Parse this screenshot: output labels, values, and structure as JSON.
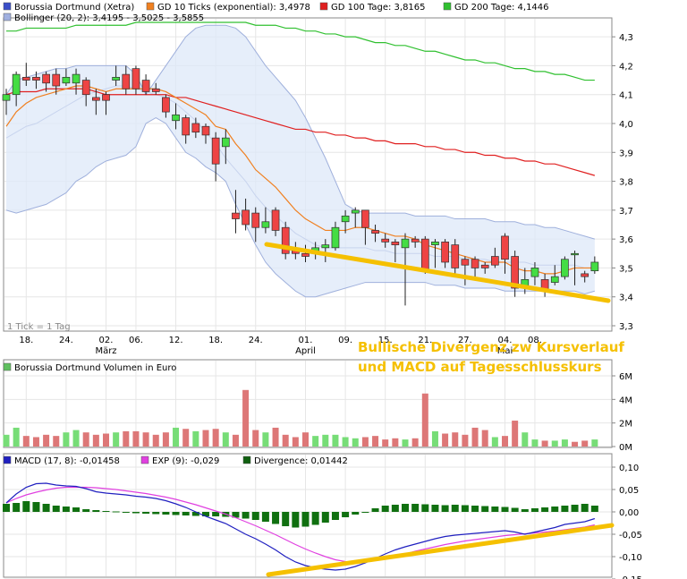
{
  "legend_top": [
    {
      "label": "Borussia Dortmund (Xetra)",
      "color": "#3a4ec8"
    },
    {
      "label": "GD 10 Ticks (exponential): 3,4978",
      "color": "#f08020"
    },
    {
      "label": "GD 100 Tage: 3,8165",
      "color": "#e02020"
    },
    {
      "label": "GD 200 Tage: 4,1446",
      "color": "#30c030"
    },
    {
      "label": "Bollinger (20, 2): 3,4195 - 3,5025 - 3,5855",
      "color": "#a0b0e0"
    }
  ],
  "tick_note": "1 Tick = 1 Tag",
  "annotation_line1": "Bullische Divergenz zw Kursverlauf",
  "annotation_line2": "und MACD auf Tagesschlusskurs",
  "x_labels": [
    {
      "label": "18.",
      "i": 2
    },
    {
      "label": "24.",
      "i": 6
    },
    {
      "label": "02.",
      "i": 10
    },
    {
      "label": "06.",
      "i": 13
    },
    {
      "label": "12.",
      "i": 17
    },
    {
      "label": "18.",
      "i": 21
    },
    {
      "label": "24.",
      "i": 25
    },
    {
      "label": "01.",
      "i": 30
    },
    {
      "label": "09.",
      "i": 34
    },
    {
      "label": "15.",
      "i": 38
    },
    {
      "label": "21.",
      "i": 42
    },
    {
      "label": "27.",
      "i": 46
    },
    {
      "label": "04.",
      "i": 50
    },
    {
      "label": "08.",
      "i": 53
    }
  ],
  "x_month_labels": [
    {
      "label": "März",
      "i": 10
    },
    {
      "label": "April",
      "i": 30
    },
    {
      "label": "Mai",
      "i": 50
    }
  ],
  "volume_legend": {
    "label": "Borussia Dortmund Volumen in Euro",
    "color": "#60c060"
  },
  "macd_legend": [
    {
      "label": "MACD (17, 8): -0,01458",
      "color": "#2020c0"
    },
    {
      "label": "EXP (9): -0,029",
      "color": "#e040e0"
    },
    {
      "label": "Divergence: 0,01442",
      "color": "#106010"
    }
  ],
  "chart_data": [
    {
      "type": "candlestick",
      "title": "Borussia Dortmund (Xetra)",
      "ylim": [
        3.3,
        4.35
      ],
      "y_ticks": [
        {
          "v": 3.3,
          "label": "3,3"
        },
        {
          "v": 3.4,
          "label": "3,4"
        },
        {
          "v": 3.5,
          "label": "3,5"
        },
        {
          "v": 3.6,
          "label": "3,6"
        },
        {
          "v": 3.7,
          "label": "3,7"
        },
        {
          "v": 3.8,
          "label": "3,8"
        },
        {
          "v": 3.9,
          "label": "3,9"
        },
        {
          "v": 4.0,
          "label": "4,0"
        },
        {
          "v": 4.1,
          "label": "4,1"
        },
        {
          "v": 4.2,
          "label": "4,2"
        },
        {
          "v": 4.3,
          "label": "4,3"
        }
      ],
      "candles": [
        [
          4.08,
          4.1,
          4.12,
          4.03
        ],
        [
          4.1,
          4.17,
          4.18,
          4.06
        ],
        [
          4.16,
          4.15,
          4.21,
          4.13
        ],
        [
          4.16,
          4.15,
          4.18,
          4.12
        ],
        [
          4.17,
          4.14,
          4.18,
          4.11
        ],
        [
          4.17,
          4.13,
          4.19,
          4.1
        ],
        [
          4.14,
          4.16,
          4.19,
          4.13
        ],
        [
          4.14,
          4.17,
          4.19,
          4.1
        ],
        [
          4.15,
          4.1,
          4.16,
          4.06
        ],
        [
          4.09,
          4.08,
          4.12,
          4.03
        ],
        [
          4.1,
          4.08,
          4.11,
          4.03
        ],
        [
          4.15,
          4.16,
          4.2,
          4.13
        ],
        [
          4.17,
          4.12,
          4.2,
          4.1
        ],
        [
          4.19,
          4.12,
          4.2,
          4.1
        ],
        [
          4.15,
          4.11,
          4.17,
          4.1
        ],
        [
          4.12,
          4.11,
          4.14,
          4.1
        ],
        [
          4.09,
          4.04,
          4.1,
          4.02
        ],
        [
          4.01,
          4.03,
          4.07,
          3.98
        ],
        [
          4.02,
          3.96,
          4.03,
          3.93
        ],
        [
          4.0,
          3.97,
          4.02,
          3.95
        ],
        [
          3.99,
          3.96,
          4.0,
          3.93
        ],
        [
          3.95,
          3.86,
          3.97,
          3.8
        ],
        [
          3.92,
          3.95,
          3.98,
          3.86
        ],
        [
          3.69,
          3.67,
          3.77,
          3.62
        ],
        [
          3.7,
          3.65,
          3.74,
          3.63
        ],
        [
          3.69,
          3.64,
          3.71,
          3.59
        ],
        [
          3.64,
          3.66,
          3.71,
          3.62
        ],
        [
          3.7,
          3.63,
          3.71,
          3.61
        ],
        [
          3.64,
          3.55,
          3.66,
          3.53
        ],
        [
          3.56,
          3.55,
          3.59,
          3.53
        ],
        [
          3.55,
          3.54,
          3.58,
          3.52
        ],
        [
          3.55,
          3.57,
          3.59,
          3.53
        ],
        [
          3.57,
          3.58,
          3.6,
          3.52
        ],
        [
          3.57,
          3.64,
          3.66,
          3.56
        ],
        [
          3.66,
          3.68,
          3.7,
          3.62
        ],
        [
          3.69,
          3.7,
          3.71,
          3.64
        ],
        [
          3.7,
          3.64,
          3.7,
          3.58
        ],
        [
          3.63,
          3.62,
          3.65,
          3.59
        ],
        [
          3.6,
          3.59,
          3.62,
          3.57
        ],
        [
          3.59,
          3.58,
          3.6,
          3.52
        ],
        [
          3.57,
          3.6,
          3.62,
          3.37
        ],
        [
          3.6,
          3.59,
          3.61,
          3.57
        ],
        [
          3.6,
          3.49,
          3.61,
          3.48
        ],
        [
          3.58,
          3.59,
          3.6,
          3.5
        ],
        [
          3.59,
          3.52,
          3.6,
          3.5
        ],
        [
          3.58,
          3.5,
          3.6,
          3.47
        ],
        [
          3.53,
          3.51,
          3.54,
          3.44
        ],
        [
          3.53,
          3.5,
          3.54,
          3.47
        ],
        [
          3.51,
          3.5,
          3.52,
          3.48
        ],
        [
          3.54,
          3.51,
          3.57,
          3.5
        ],
        [
          3.61,
          3.53,
          3.62,
          3.48
        ],
        [
          3.54,
          3.43,
          3.56,
          3.4
        ],
        [
          3.43,
          3.46,
          3.5,
          3.41
        ],
        [
          3.47,
          3.5,
          3.52,
          3.44
        ],
        [
          3.46,
          3.42,
          3.48,
          3.4
        ],
        [
          3.45,
          3.47,
          3.51,
          3.44
        ],
        [
          3.47,
          3.53,
          3.54,
          3.46
        ],
        [
          3.55,
          3.55,
          3.56,
          3.44
        ],
        [
          3.48,
          3.47,
          3.49,
          3.45
        ],
        [
          3.49,
          3.52,
          3.54,
          3.48
        ]
      ],
      "ema10": [
        3.99,
        4.04,
        4.07,
        4.09,
        4.1,
        4.11,
        4.12,
        4.13,
        4.13,
        4.12,
        4.11,
        4.12,
        4.12,
        4.12,
        4.12,
        4.12,
        4.11,
        4.09,
        4.07,
        4.05,
        4.03,
        3.99,
        3.98,
        3.93,
        3.89,
        3.84,
        3.81,
        3.78,
        3.74,
        3.7,
        3.67,
        3.65,
        3.63,
        3.63,
        3.63,
        3.64,
        3.64,
        3.63,
        3.62,
        3.61,
        3.61,
        3.6,
        3.58,
        3.57,
        3.56,
        3.55,
        3.54,
        3.53,
        3.52,
        3.52,
        3.52,
        3.5,
        3.49,
        3.49,
        3.48,
        3.48,
        3.49,
        3.5,
        3.5,
        3.5
      ],
      "gd100": [
        4.1,
        4.11,
        4.11,
        4.11,
        4.12,
        4.12,
        4.12,
        4.12,
        4.12,
        4.11,
        4.1,
        4.1,
        4.1,
        4.1,
        4.1,
        4.1,
        4.1,
        4.09,
        4.09,
        4.08,
        4.07,
        4.06,
        4.05,
        4.04,
        4.03,
        4.02,
        4.01,
        4.0,
        3.99,
        3.98,
        3.98,
        3.97,
        3.97,
        3.96,
        3.96,
        3.95,
        3.95,
        3.94,
        3.94,
        3.93,
        3.93,
        3.93,
        3.92,
        3.92,
        3.91,
        3.91,
        3.9,
        3.9,
        3.89,
        3.89,
        3.88,
        3.88,
        3.87,
        3.87,
        3.86,
        3.86,
        3.85,
        3.84,
        3.83,
        3.82
      ],
      "gd200": [
        4.32,
        4.32,
        4.33,
        4.33,
        4.33,
        4.33,
        4.33,
        4.34,
        4.34,
        4.34,
        4.34,
        4.34,
        4.34,
        4.35,
        4.35,
        4.35,
        4.35,
        4.35,
        4.35,
        4.35,
        4.35,
        4.35,
        4.35,
        4.35,
        4.35,
        4.34,
        4.34,
        4.34,
        4.33,
        4.33,
        4.32,
        4.32,
        4.31,
        4.31,
        4.3,
        4.3,
        4.29,
        4.28,
        4.28,
        4.27,
        4.27,
        4.26,
        4.25,
        4.25,
        4.24,
        4.23,
        4.22,
        4.22,
        4.21,
        4.21,
        4.2,
        4.19,
        4.19,
        4.18,
        4.18,
        4.17,
        4.17,
        4.16,
        4.15,
        4.15
      ],
      "boll_upper": [
        4.1,
        4.15,
        4.16,
        4.17,
        4.18,
        4.19,
        4.19,
        4.2,
        4.2,
        4.2,
        4.2,
        4.2,
        4.2,
        4.17,
        4.1,
        4.15,
        4.2,
        4.25,
        4.3,
        4.33,
        4.34,
        4.34,
        4.34,
        4.33,
        4.3,
        4.25,
        4.2,
        4.16,
        4.12,
        4.08,
        4.02,
        3.95,
        3.88,
        3.8,
        3.72,
        3.7,
        3.69,
        3.69,
        3.69,
        3.69,
        3.69,
        3.68,
        3.68,
        3.68,
        3.68,
        3.67,
        3.67,
        3.67,
        3.67,
        3.66,
        3.66,
        3.66,
        3.65,
        3.65,
        3.64,
        3.64,
        3.63,
        3.62,
        3.61,
        3.6
      ],
      "boll_middle": [
        3.95,
        3.97,
        3.99,
        4.0,
        4.02,
        4.04,
        4.06,
        4.08,
        4.1,
        4.11,
        4.12,
        4.13,
        4.13,
        4.12,
        4.11,
        4.1,
        4.09,
        4.07,
        4.04,
        4.01,
        3.97,
        3.93,
        3.88,
        3.84,
        3.8,
        3.75,
        3.71,
        3.68,
        3.65,
        3.62,
        3.6,
        3.58,
        3.57,
        3.57,
        3.57,
        3.57,
        3.57,
        3.56,
        3.56,
        3.55,
        3.55,
        3.55,
        3.55,
        3.54,
        3.54,
        3.54,
        3.53,
        3.53,
        3.53,
        3.52,
        3.52,
        3.52,
        3.52,
        3.51,
        3.51,
        3.51,
        3.51,
        3.51,
        3.5,
        3.5
      ],
      "boll_lower": [
        3.7,
        3.69,
        3.7,
        3.71,
        3.72,
        3.74,
        3.76,
        3.8,
        3.82,
        3.85,
        3.87,
        3.88,
        3.89,
        3.92,
        4.0,
        4.02,
        4.0,
        3.95,
        3.9,
        3.88,
        3.85,
        3.83,
        3.8,
        3.72,
        3.65,
        3.58,
        3.52,
        3.48,
        3.45,
        3.42,
        3.4,
        3.4,
        3.41,
        3.42,
        3.43,
        3.44,
        3.45,
        3.45,
        3.45,
        3.45,
        3.45,
        3.45,
        3.45,
        3.44,
        3.44,
        3.44,
        3.43,
        3.43,
        3.43,
        3.43,
        3.42,
        3.42,
        3.42,
        3.42,
        3.42,
        3.42,
        3.42,
        3.42,
        3.41,
        3.42
      ]
    },
    {
      "type": "bar",
      "title": "Borussia Dortmund Volumen in Euro",
      "ylim": [
        0,
        6
      ],
      "y_ticks": [
        {
          "v": 0,
          "label": "0M"
        },
        {
          "v": 2,
          "label": "2M"
        },
        {
          "v": 4,
          "label": "4M"
        },
        {
          "v": 6,
          "label": "6M"
        }
      ],
      "values": [
        1.0,
        1.6,
        0.9,
        0.8,
        1.0,
        0.9,
        1.2,
        1.4,
        1.2,
        1.0,
        1.1,
        1.2,
        1.3,
        1.3,
        1.2,
        1.0,
        1.2,
        1.6,
        1.5,
        1.3,
        1.4,
        1.5,
        1.2,
        1.0,
        4.8,
        1.4,
        1.2,
        1.6,
        1.0,
        0.8,
        1.2,
        0.9,
        1.0,
        1.0,
        0.8,
        0.7,
        0.8,
        0.9,
        0.6,
        0.7,
        0.6,
        0.7,
        4.5,
        1.3,
        1.1,
        1.2,
        1.0,
        1.6,
        1.4,
        0.8,
        0.9,
        2.2,
        1.2,
        0.6,
        0.5,
        0.5,
        0.6,
        0.4,
        0.5,
        0.6
      ],
      "up": [
        true,
        true,
        false,
        false,
        false,
        false,
        true,
        true,
        false,
        false,
        false,
        true,
        false,
        false,
        false,
        false,
        false,
        true,
        false,
        true,
        false,
        false,
        true,
        false,
        false,
        false,
        true,
        false,
        false,
        false,
        false,
        true,
        true,
        true,
        true,
        true,
        false,
        false,
        false,
        false,
        true,
        false,
        false,
        true,
        false,
        false,
        false,
        false,
        false,
        true,
        false,
        false,
        true,
        true,
        false,
        true,
        true,
        false,
        false,
        true
      ]
    },
    {
      "type": "line",
      "title": "MACD (17, 8)",
      "ylim": [
        -0.15,
        0.1
      ],
      "y_ticks": [
        {
          "v": -0.15,
          "label": "-0,15"
        },
        {
          "v": -0.1,
          "label": "-0,10"
        },
        {
          "v": -0.05,
          "label": "-0,05"
        },
        {
          "v": 0.0,
          "label": "0,00"
        },
        {
          "v": 0.05,
          "label": "0,05"
        },
        {
          "v": 0.1,
          "label": "0,10"
        }
      ],
      "macd": [
        0.02,
        0.04,
        0.055,
        0.063,
        0.064,
        0.06,
        0.058,
        0.057,
        0.052,
        0.045,
        0.042,
        0.04,
        0.038,
        0.035,
        0.033,
        0.03,
        0.025,
        0.018,
        0.01,
        0.0,
        -0.01,
        -0.018,
        -0.026,
        -0.038,
        -0.05,
        -0.06,
        -0.072,
        -0.085,
        -0.1,
        -0.112,
        -0.12,
        -0.125,
        -0.128,
        -0.13,
        -0.128,
        -0.122,
        -0.114,
        -0.104,
        -0.094,
        -0.085,
        -0.078,
        -0.072,
        -0.066,
        -0.06,
        -0.055,
        -0.052,
        -0.05,
        -0.048,
        -0.046,
        -0.044,
        -0.042,
        -0.045,
        -0.05,
        -0.045,
        -0.04,
        -0.035,
        -0.028,
        -0.025,
        -0.022,
        -0.015
      ],
      "exp": [
        0.02,
        0.03,
        0.038,
        0.044,
        0.049,
        0.053,
        0.055,
        0.055,
        0.055,
        0.054,
        0.052,
        0.05,
        0.047,
        0.044,
        0.041,
        0.037,
        0.033,
        0.028,
        0.022,
        0.016,
        0.009,
        0.002,
        -0.005,
        -0.013,
        -0.022,
        -0.031,
        -0.041,
        -0.051,
        -0.062,
        -0.073,
        -0.083,
        -0.092,
        -0.1,
        -0.107,
        -0.111,
        -0.112,
        -0.111,
        -0.108,
        -0.104,
        -0.099,
        -0.094,
        -0.088,
        -0.083,
        -0.078,
        -0.073,
        -0.069,
        -0.065,
        -0.062,
        -0.059,
        -0.056,
        -0.053,
        -0.051,
        -0.049,
        -0.047,
        -0.045,
        -0.043,
        -0.04,
        -0.037,
        -0.034,
        -0.029
      ],
      "divergence": [
        0.018,
        0.02,
        0.024,
        0.022,
        0.018,
        0.014,
        0.012,
        0.01,
        0.006,
        0.004,
        0.002,
        0.001,
        -0.001,
        -0.003,
        -0.004,
        -0.005,
        -0.006,
        -0.007,
        -0.008,
        -0.009,
        -0.01,
        -0.01,
        -0.011,
        -0.013,
        -0.015,
        -0.018,
        -0.022,
        -0.027,
        -0.032,
        -0.035,
        -0.033,
        -0.029,
        -0.024,
        -0.018,
        -0.012,
        -0.006,
        0.0,
        0.008,
        0.014,
        0.016,
        0.018,
        0.018,
        0.017,
        0.016,
        0.015,
        0.016,
        0.015,
        0.014,
        0.013,
        0.012,
        0.011,
        0.009,
        0.006,
        0.008,
        0.01,
        0.012,
        0.014,
        0.016,
        0.018,
        0.014
      ]
    }
  ]
}
